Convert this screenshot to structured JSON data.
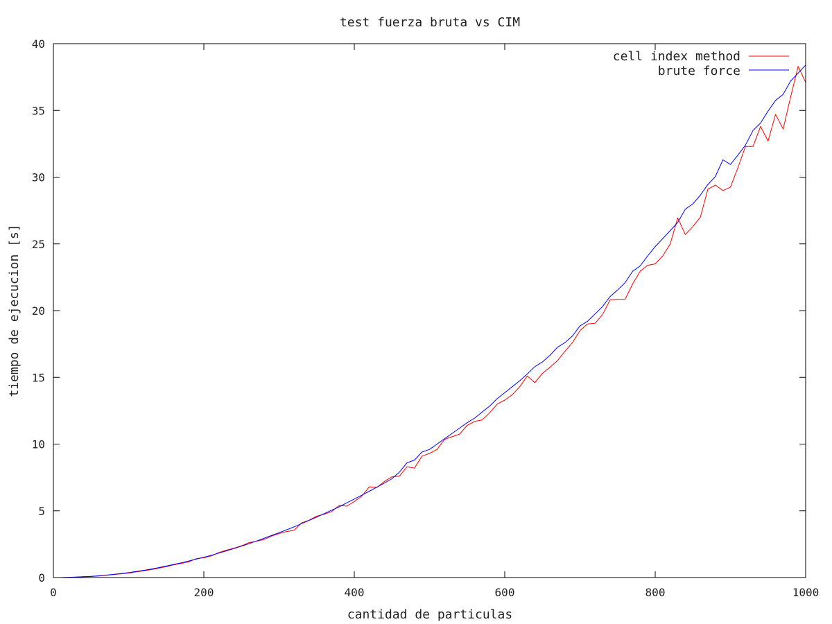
{
  "chart_data": {
    "type": "line",
    "title": "test fuerza bruta vs CIM",
    "xlabel": "cantidad de particulas",
    "ylabel": "tiempo de ejecucion [s]",
    "xlim": [
      0,
      1000
    ],
    "ylim": [
      0,
      40
    ],
    "xticks": [
      0,
      200,
      400,
      600,
      800,
      1000
    ],
    "yticks": [
      0,
      5,
      10,
      15,
      20,
      25,
      30,
      35,
      40
    ],
    "grid": false,
    "legend": "top-right",
    "x": [
      10,
      20,
      30,
      40,
      50,
      60,
      70,
      80,
      90,
      100,
      110,
      120,
      130,
      140,
      150,
      160,
      170,
      180,
      190,
      200,
      210,
      220,
      230,
      240,
      250,
      260,
      270,
      280,
      290,
      300,
      310,
      320,
      330,
      340,
      350,
      360,
      370,
      380,
      390,
      400,
      410,
      420,
      430,
      440,
      450,
      460,
      470,
      480,
      490,
      500,
      510,
      520,
      530,
      540,
      550,
      560,
      570,
      580,
      590,
      600,
      610,
      620,
      630,
      640,
      650,
      660,
      670,
      680,
      690,
      700,
      710,
      720,
      730,
      740,
      750,
      760,
      770,
      780,
      790,
      800,
      810,
      820,
      830,
      840,
      850,
      860,
      870,
      880,
      890,
      900,
      910,
      920,
      930,
      940,
      950,
      960,
      970,
      980,
      990,
      1000
    ],
    "series": [
      {
        "name": "cell index method",
        "color": "#ff0000",
        "values": [
          0.0,
          0.02,
          0.03,
          0.06,
          0.08,
          0.12,
          0.17,
          0.22,
          0.28,
          0.34,
          0.42,
          0.5,
          0.6,
          0.7,
          0.82,
          0.95,
          1.06,
          1.18,
          1.42,
          1.48,
          1.62,
          1.88,
          2.05,
          2.2,
          2.38,
          2.62,
          2.72,
          2.85,
          3.1,
          3.3,
          3.45,
          3.55,
          4.1,
          4.3,
          4.6,
          4.75,
          4.95,
          5.4,
          5.35,
          5.7,
          6.1,
          6.8,
          6.75,
          7.2,
          7.55,
          7.6,
          8.3,
          8.2,
          9.1,
          9.3,
          9.6,
          10.35,
          10.55,
          10.75,
          11.4,
          11.7,
          11.8,
          12.35,
          13.0,
          13.3,
          13.7,
          14.3,
          15.1,
          14.6,
          15.3,
          15.75,
          16.25,
          16.95,
          17.6,
          18.5,
          19.0,
          19.05,
          19.7,
          20.8,
          20.85,
          20.85,
          22.0,
          22.95,
          23.4,
          23.5,
          24.1,
          25.0,
          26.95,
          25.7,
          26.3,
          27.0,
          29.1,
          29.4,
          29.0,
          29.25,
          30.7,
          32.3,
          32.3,
          33.8,
          32.7,
          34.7,
          33.6,
          36.0,
          38.3,
          37.1
        ]
      },
      {
        "name": "brute force",
        "color": "#0000ff",
        "values": [
          0.0,
          0.02,
          0.04,
          0.06,
          0.09,
          0.13,
          0.18,
          0.24,
          0.3,
          0.37,
          0.45,
          0.54,
          0.64,
          0.75,
          0.86,
          0.98,
          1.1,
          1.24,
          1.38,
          1.52,
          1.67,
          1.83,
          2.0,
          2.17,
          2.35,
          2.54,
          2.74,
          2.94,
          3.15,
          3.36,
          3.58,
          3.8,
          4.04,
          4.28,
          4.53,
          4.79,
          5.05,
          5.3,
          5.6,
          5.88,
          6.17,
          6.47,
          6.77,
          7.08,
          7.4,
          7.9,
          8.6,
          8.8,
          9.4,
          9.6,
          10.0,
          10.4,
          10.8,
          11.2,
          11.6,
          11.95,
          12.4,
          12.85,
          13.4,
          13.85,
          14.3,
          14.75,
          15.25,
          15.8,
          16.15,
          16.65,
          17.25,
          17.6,
          18.1,
          18.85,
          19.2,
          19.75,
          20.3,
          21.05,
          21.55,
          22.1,
          22.95,
          23.35,
          24.1,
          24.8,
          25.4,
          26.0,
          26.6,
          27.6,
          28.0,
          28.65,
          29.45,
          30.05,
          31.3,
          30.95,
          31.65,
          32.4,
          33.5,
          34.05,
          34.95,
          35.75,
          36.2,
          37.2,
          37.8,
          38.4
        ]
      }
    ]
  }
}
